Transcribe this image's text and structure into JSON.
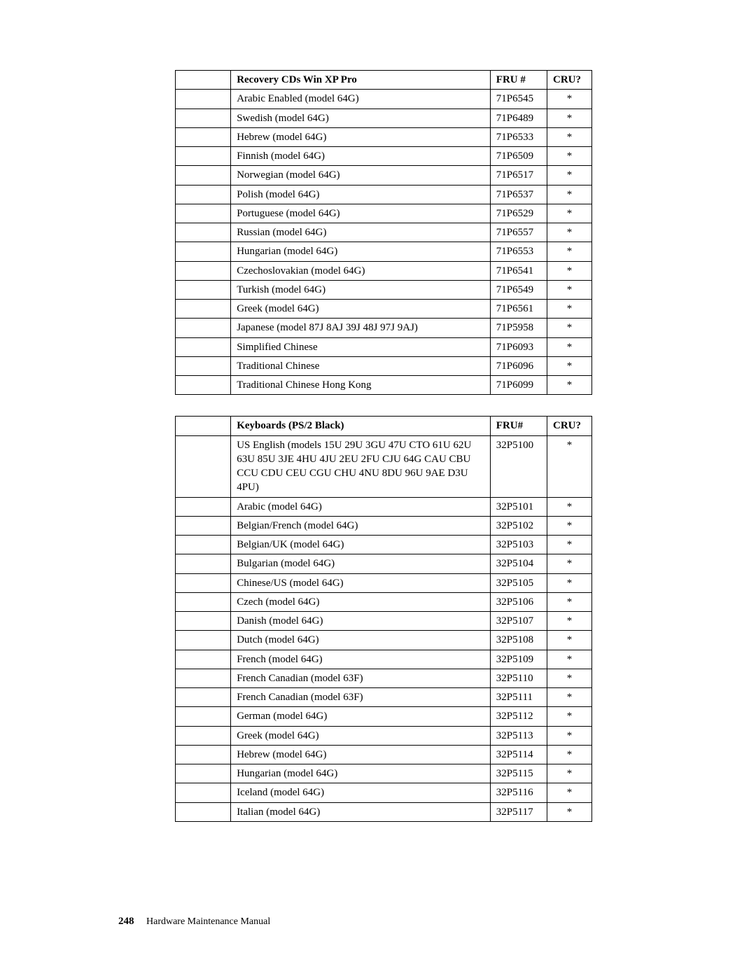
{
  "table1": {
    "headers": {
      "col1": "",
      "col2": "Recovery CDs Win XP Pro",
      "col3": "FRU #",
      "col4": "CRU?"
    },
    "rows": [
      {
        "c1": "",
        "c2": "Arabic Enabled (model 64G)",
        "c3": "71P6545",
        "c4": "*"
      },
      {
        "c1": "",
        "c2": "Swedish (model 64G)",
        "c3": "71P6489",
        "c4": "*"
      },
      {
        "c1": "",
        "c2": "Hebrew (model 64G)",
        "c3": "71P6533",
        "c4": "*"
      },
      {
        "c1": "",
        "c2": "Finnish (model 64G)",
        "c3": "71P6509",
        "c4": "*"
      },
      {
        "c1": "",
        "c2": "Norwegian (model 64G)",
        "c3": "71P6517",
        "c4": "*"
      },
      {
        "c1": "",
        "c2": "Polish (model 64G)",
        "c3": "71P6537",
        "c4": "*"
      },
      {
        "c1": "",
        "c2": "Portuguese (model 64G)",
        "c3": "71P6529",
        "c4": "*"
      },
      {
        "c1": "",
        "c2": "Russian (model 64G)",
        "c3": "71P6557",
        "c4": "*"
      },
      {
        "c1": "",
        "c2": "Hungarian (model 64G)",
        "c3": "71P6553",
        "c4": "*"
      },
      {
        "c1": "",
        "c2": "Czechoslovakian (model 64G)",
        "c3": "71P6541",
        "c4": "*"
      },
      {
        "c1": "",
        "c2": "Turkish (model 64G)",
        "c3": "71P6549",
        "c4": "*"
      },
      {
        "c1": "",
        "c2": "Greek (model 64G)",
        "c3": "71P6561",
        "c4": "*"
      },
      {
        "c1": "",
        "c2": "Japanese (model 87J 8AJ 39J 48J 97J 9AJ)",
        "c3": "71P5958",
        "c4": "*"
      },
      {
        "c1": "",
        "c2": "Simplified Chinese",
        "c3": "71P6093",
        "c4": "*"
      },
      {
        "c1": "",
        "c2": "Traditional Chinese",
        "c3": "71P6096",
        "c4": "*"
      },
      {
        "c1": "",
        "c2": "Traditional Chinese Hong Kong",
        "c3": "71P6099",
        "c4": "*"
      }
    ]
  },
  "table2": {
    "headers": {
      "col1": "",
      "col2": "Keyboards (PS/2 Black)",
      "col3": "FRU#",
      "col4": "CRU?"
    },
    "rows": [
      {
        "c1": "",
        "c2": "US English (models 15U 29U 3GU 47U CTO 61U 62U 63U 85U 3JE 4HU 4JU 2EU 2FU CJU 64G CAU CBU CCU CDU CEU CGU CHU 4NU 8DU 96U 9AE D3U 4PU)",
        "c3": "32P5100",
        "c4": "*"
      },
      {
        "c1": "",
        "c2": "Arabic (model 64G)",
        "c3": "32P5101",
        "c4": "*"
      },
      {
        "c1": "",
        "c2": "Belgian/French (model 64G)",
        "c3": "32P5102",
        "c4": "*"
      },
      {
        "c1": "",
        "c2": "Belgian/UK (model 64G)",
        "c3": "32P5103",
        "c4": "*"
      },
      {
        "c1": "",
        "c2": "Bulgarian (model 64G)",
        "c3": "32P5104",
        "c4": "*"
      },
      {
        "c1": "",
        "c2": "Chinese/US (model 64G)",
        "c3": "32P5105",
        "c4": "*"
      },
      {
        "c1": "",
        "c2": "Czech (model 64G)",
        "c3": "32P5106",
        "c4": "*"
      },
      {
        "c1": "",
        "c2": "Danish (model 64G)",
        "c3": "32P5107",
        "c4": "*"
      },
      {
        "c1": "",
        "c2": "Dutch (model 64G)",
        "c3": "32P5108",
        "c4": "*"
      },
      {
        "c1": "",
        "c2": "French (model 64G)",
        "c3": "32P5109",
        "c4": "*"
      },
      {
        "c1": "",
        "c2": "French Canadian (model 63F)",
        "c3": "32P5110",
        "c4": "*"
      },
      {
        "c1": "",
        "c2": "French Canadian (model 63F)",
        "c3": "32P5111",
        "c4": "*"
      },
      {
        "c1": "",
        "c2": "German (model 64G)",
        "c3": "32P5112",
        "c4": "*"
      },
      {
        "c1": "",
        "c2": "Greek (model 64G)",
        "c3": "32P5113",
        "c4": "*"
      },
      {
        "c1": "",
        "c2": "Hebrew (model 64G)",
        "c3": "32P5114",
        "c4": "*"
      },
      {
        "c1": "",
        "c2": "Hungarian (model 64G)",
        "c3": "32P5115",
        "c4": "*"
      },
      {
        "c1": "",
        "c2": "Iceland (model 64G)",
        "c3": "32P5116",
        "c4": "*"
      },
      {
        "c1": "",
        "c2": "Italian (model 64G)",
        "c3": "32P5117",
        "c4": "*"
      }
    ]
  },
  "footer": {
    "page_number": "248",
    "doc_title": "Hardware Maintenance Manual"
  }
}
